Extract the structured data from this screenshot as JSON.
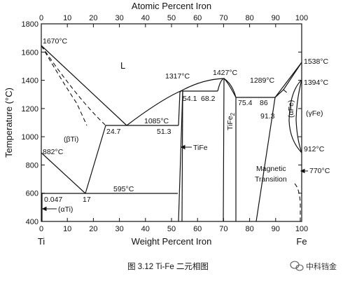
{
  "axes": {
    "top_title": "Atomic Percent Iron",
    "x_title": "Weight Percent Iron",
    "y_title": "Temperature (°C)",
    "x_ticks": [
      "0",
      "10",
      "20",
      "30",
      "40",
      "50",
      "60",
      "70",
      "80",
      "90",
      "100"
    ],
    "top_ticks": [
      "0",
      "10",
      "20",
      "30",
      "40",
      "50",
      "60",
      "70",
      "80",
      "90",
      "100"
    ],
    "y_ticks": [
      "1800",
      "1600",
      "1400",
      "1200",
      "1000",
      "800",
      "600",
      "400"
    ],
    "left_element": "Ti",
    "right_element": "Fe"
  },
  "labels": {
    "liquid": "L",
    "ti_melt": "1670°C",
    "fe_melt": "1538°C",
    "gamma_delta": "1394°C",
    "t1317": "1317°C",
    "t1427": "1427°C",
    "t1289": "1289°C",
    "c541": "54.1",
    "c682": "68.2",
    "c754": "75.4",
    "c86": "86",
    "c913": "91.3",
    "t1085": "1085°C",
    "c247": "24.7",
    "c513": "51.3",
    "beta_ti": "(βTi)",
    "tife": "TiFe",
    "tife2": "TiFe",
    "tife2_sub": "2",
    "alpha_fe": "(αFe)",
    "gamma_fe": "(γFe)",
    "t912": "912°C",
    "t882": "882°C",
    "t595": "595°C",
    "c0047": "0.047",
    "c17": "17",
    "alpha_ti": "(αTi)",
    "magnetic": "Magnetic",
    "transition": "Transition",
    "t770": "770°C"
  },
  "caption": "图 3.12 Ti-Fe 二元相图",
  "watermark": "中科铛金",
  "colors": {
    "line": "#111111",
    "watermark_icon": "#5a5a5a"
  }
}
